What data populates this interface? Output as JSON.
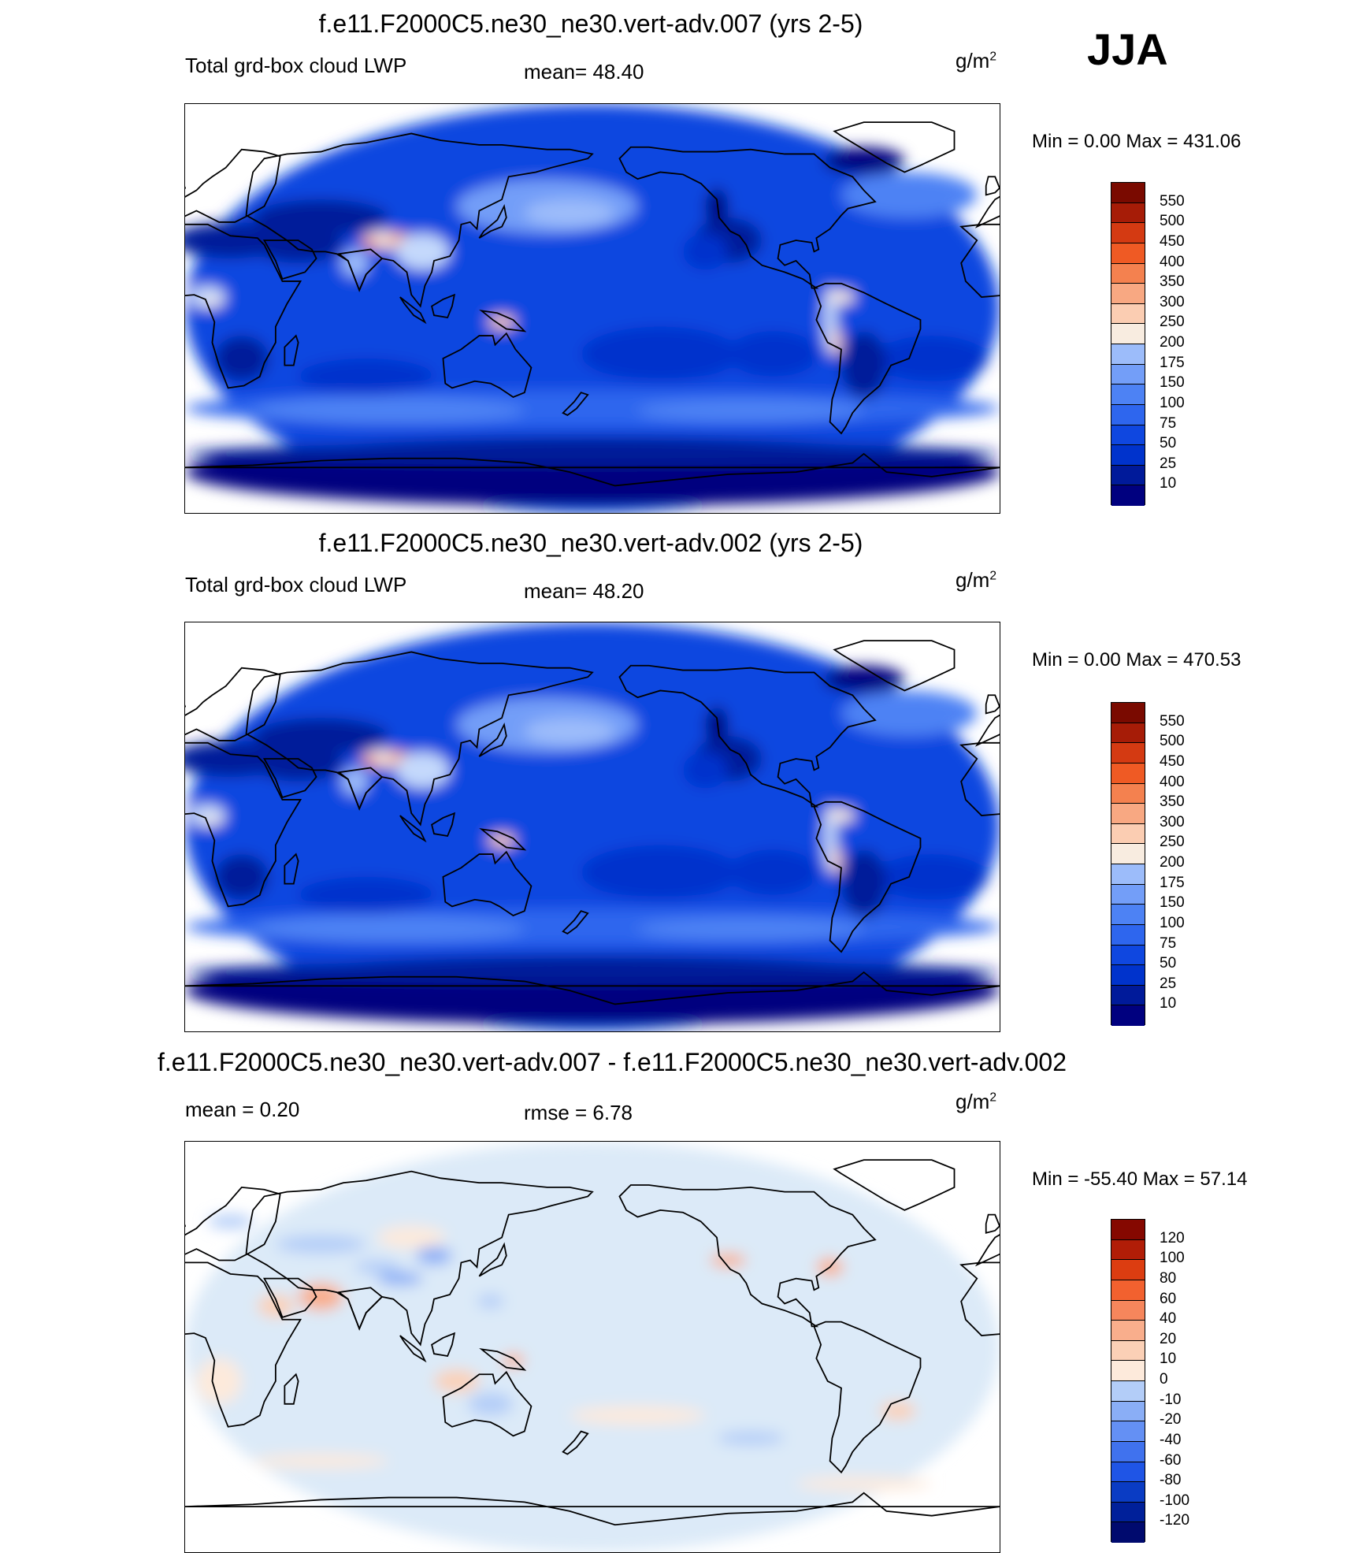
{
  "season": "JJA",
  "units_main": "g/m",
  "units_exp": "2",
  "colors": {
    "abs": [
      "#00007f",
      "#001a9a",
      "#0033cc",
      "#0f47e0",
      "#2e66ee",
      "#4d82f4",
      "#739ef8",
      "#9cbcfa",
      "#c4d9fc",
      "#f8ece0",
      "#fbcdb2",
      "#f8a882",
      "#f4814f",
      "#ef5a24",
      "#d43a12",
      "#a61c07",
      "#7a0a00"
    ],
    "diff": [
      "#000a6e",
      "#00209a",
      "#0a3cc4",
      "#1f55e6",
      "#4072ee",
      "#6490f4",
      "#8aaef6",
      "#b3cdf8",
      "#dceaf8",
      "#fdeadb",
      "#fbd0b6",
      "#f9ae8c",
      "#f6865c",
      "#f2612f",
      "#dc3d11",
      "#b11d07",
      "#850800"
    ]
  },
  "panels": [
    {
      "title": "f.e11.F2000C5.ne30_ne30.vert-adv.007 (yrs 2-5)",
      "left_label": "Total grd-box cloud LWP",
      "center_label": "mean=  48.40",
      "minmax": "Min =    0.00 Max = 431.06",
      "levels": [
        "550",
        "500",
        "450",
        "400",
        "350",
        "300",
        "250",
        "200",
        "175",
        "150",
        "100",
        "75",
        "50",
        "25",
        "10"
      ]
    },
    {
      "title": "f.e11.F2000C5.ne30_ne30.vert-adv.002 (yrs 2-5)",
      "left_label": "Total grd-box cloud LWP",
      "center_label": "mean=  48.20",
      "minmax": "Min =    0.00 Max = 470.53",
      "levels": [
        "550",
        "500",
        "450",
        "400",
        "350",
        "300",
        "250",
        "200",
        "175",
        "150",
        "100",
        "75",
        "50",
        "25",
        "10"
      ]
    },
    {
      "title": "f.e11.F2000C5.ne30_ne30.vert-adv.007 - f.e11.F2000C5.ne30_ne30.vert-adv.002",
      "left_label": "mean =   0.20",
      "center_label": "rmse =   6.78",
      "minmax": "Min = -55.40 Max =  57.14",
      "levels": [
        "120",
        "100",
        "80",
        "60",
        "40",
        "20",
        "10",
        "0",
        "-10",
        "-20",
        "-40",
        "-60",
        "-80",
        "-100",
        "-120"
      ]
    }
  ],
  "chart_data": [
    {
      "type": "heatmap",
      "title": "f.e11.F2000C5.ne30_ne30.vert-adv.007 (yrs 2-5)",
      "variable": "Total grd-box cloud LWP",
      "units": "g/m2",
      "mean": 48.4,
      "min": 0.0,
      "max": 431.06,
      "contour_levels": [
        10,
        25,
        50,
        75,
        100,
        150,
        175,
        200,
        250,
        300,
        350,
        400,
        450,
        500,
        550
      ]
    },
    {
      "type": "heatmap",
      "title": "f.e11.F2000C5.ne30_ne30.vert-adv.002 (yrs 2-5)",
      "variable": "Total grd-box cloud LWP",
      "units": "g/m2",
      "mean": 48.2,
      "min": 0.0,
      "max": 470.53,
      "contour_levels": [
        10,
        25,
        50,
        75,
        100,
        150,
        175,
        200,
        250,
        300,
        350,
        400,
        450,
        500,
        550
      ]
    },
    {
      "type": "heatmap",
      "title": "f.e11.F2000C5.ne30_ne30.vert-adv.007 - f.e11.F2000C5.ne30_ne30.vert-adv.002",
      "units": "g/m2",
      "mean": 0.2,
      "rmse": 6.78,
      "min": -55.4,
      "max": 57.14,
      "contour_levels": [
        -120,
        -100,
        -80,
        -60,
        -40,
        -20,
        -10,
        0,
        10,
        20,
        40,
        60,
        80,
        100,
        120
      ]
    }
  ]
}
